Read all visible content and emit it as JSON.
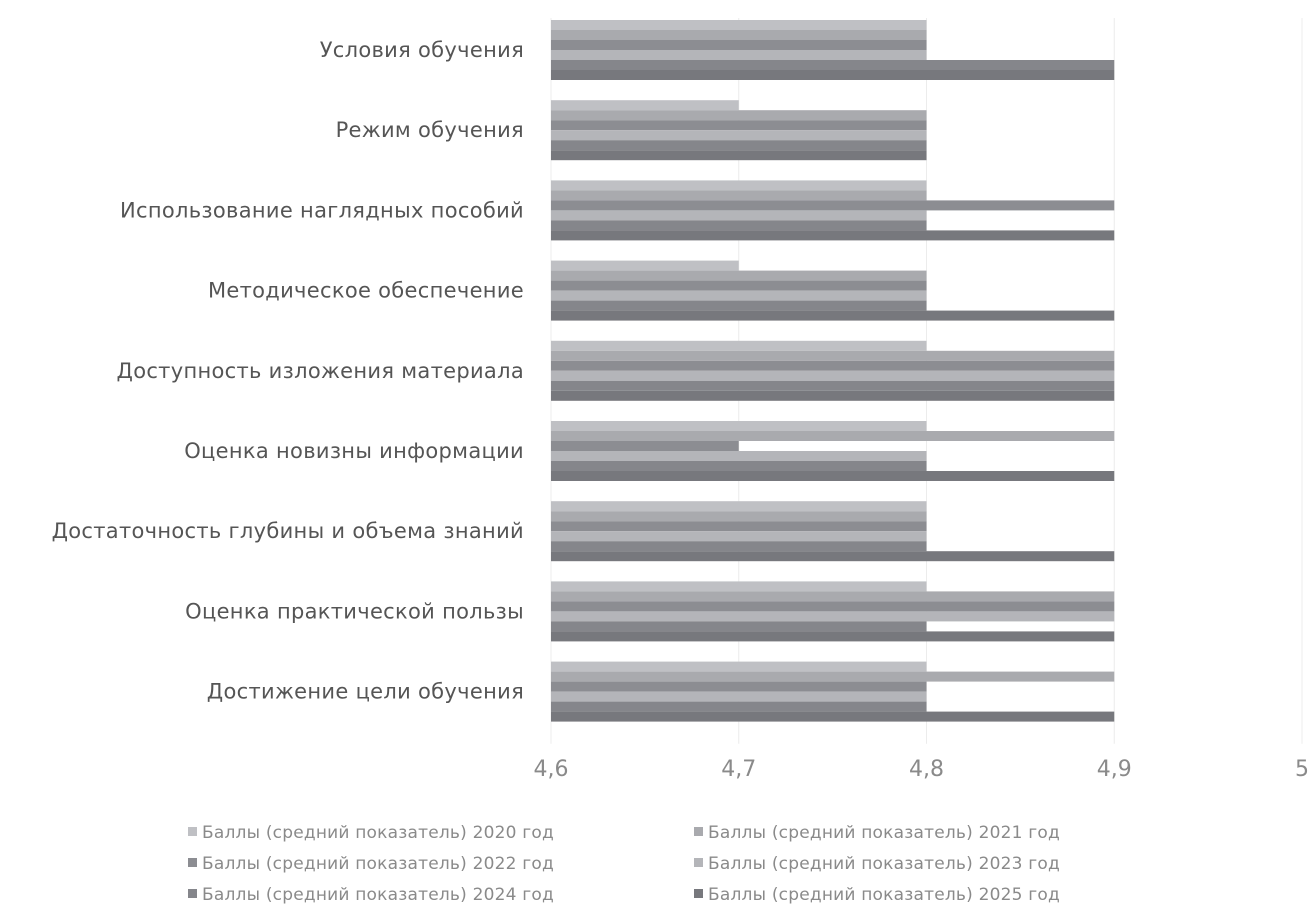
{
  "chart_data": {
    "type": "bar",
    "orientation": "horizontal",
    "categories": [
      "Условия обучения",
      "Режим обучения",
      "Использование наглядных пособий",
      "Методическое обеспечение",
      "Доступность изложения материала",
      "Оценка новизны информации",
      "Достаточность глубины и объема знаний",
      "Оценка практической пользы",
      "Достижение цели обучения"
    ],
    "series": [
      {
        "name": "Баллы (средний показатель) 2020 год",
        "color": "#bfc0c4",
        "values": [
          4.8,
          4.7,
          4.8,
          4.7,
          4.8,
          4.8,
          4.8,
          4.8,
          4.8
        ]
      },
      {
        "name": "Баллы (средний показатель) 2021 год",
        "color": "#a9aaae",
        "values": [
          4.8,
          4.8,
          4.8,
          4.8,
          4.9,
          4.9,
          4.8,
          4.9,
          4.9
        ]
      },
      {
        "name": "Баллы (средний показатель) 2022 год",
        "color": "#8c8d92",
        "values": [
          4.8,
          4.8,
          4.9,
          4.8,
          4.9,
          4.7,
          4.8,
          4.9,
          4.8
        ]
      },
      {
        "name": "Баллы (средний показатель) 2023 год",
        "color": "#b4b5b9",
        "values": [
          4.8,
          4.8,
          4.8,
          4.8,
          4.9,
          4.8,
          4.8,
          4.9,
          4.8
        ]
      },
      {
        "name": "Баллы (средний показатель) 2024 год",
        "color": "#85868b",
        "values": [
          4.9,
          4.8,
          4.8,
          4.8,
          4.9,
          4.8,
          4.8,
          4.8,
          4.8
        ]
      },
      {
        "name": "Баллы (средний показатель) 2025 год",
        "color": "#77787d",
        "values": [
          4.9,
          4.8,
          4.9,
          4.9,
          4.9,
          4.9,
          4.9,
          4.9,
          4.9
        ]
      }
    ],
    "xlim": [
      4.6,
      5.0
    ],
    "x_ticks": [
      "4,6",
      "4,7",
      "4,8",
      "4,9",
      "5"
    ],
    "title": "",
    "xlabel": "",
    "ylabel": "",
    "grid": true,
    "legend_position": "bottom"
  }
}
